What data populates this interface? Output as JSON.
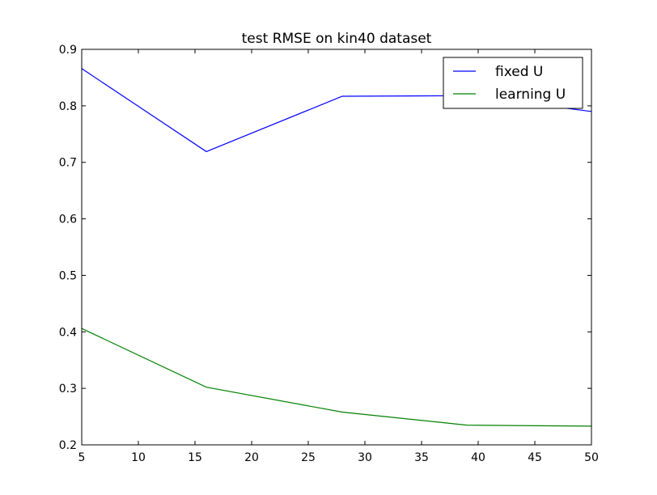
{
  "chart_data": {
    "type": "line",
    "title": "test RMSE on kin40 dataset",
    "xlabel": "",
    "ylabel": "",
    "xlim": [
      5,
      50
    ],
    "ylim": [
      0.2,
      0.9
    ],
    "xticks": [
      5,
      10,
      15,
      20,
      25,
      30,
      35,
      40,
      45,
      50
    ],
    "yticks": [
      0.2,
      0.3,
      0.4,
      0.5,
      0.6,
      0.7,
      0.8,
      0.9
    ],
    "grid": false,
    "legend": "top-right",
    "series": [
      {
        "name": "fixed U",
        "color": "#0000ff",
        "x": [
          5,
          16,
          28,
          39,
          50
        ],
        "y": [
          0.866,
          0.719,
          0.817,
          0.818,
          0.79
        ]
      },
      {
        "name": "learning U",
        "color": "#008000",
        "x": [
          5,
          16,
          28,
          39,
          50
        ],
        "y": [
          0.406,
          0.302,
          0.258,
          0.235,
          0.233
        ]
      }
    ]
  }
}
